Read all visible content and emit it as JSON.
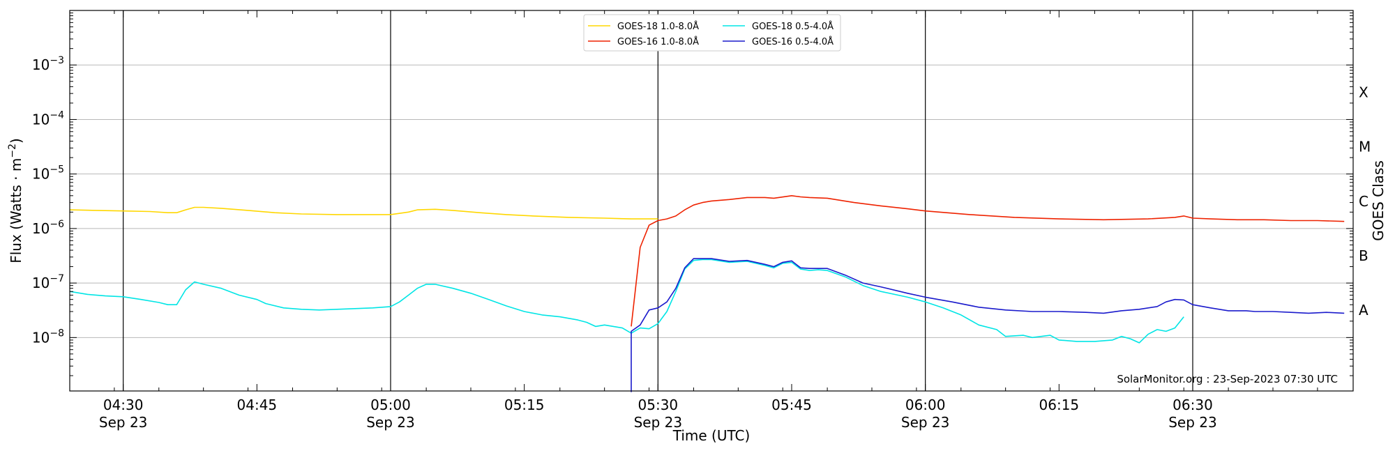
{
  "chart_data": {
    "type": "line",
    "xlabel": "Time (UTC)",
    "ylabel": "Flux (Watts · m",
    "ylabel_sup": "−2",
    "ylabel_close": ")",
    "right_label": "GOES Class",
    "credit": "SolarMonitor.org : 23-Sep-2023 07:30 UTC",
    "xlim": [
      "04:24",
      "06:48"
    ],
    "ylim_log10": [
      -8.98,
      -2.0
    ],
    "y_scale": "log",
    "grid": "horizontal at each decade",
    "legend_position": "top-center",
    "x_ticks": [
      {
        "time": "04:30",
        "label": "04:30",
        "date": "Sep 23",
        "vline": true
      },
      {
        "time": "04:45",
        "label": "04:45",
        "date": "",
        "vline": false
      },
      {
        "time": "05:00",
        "label": "05:00",
        "date": "Sep 23",
        "vline": true
      },
      {
        "time": "05:15",
        "label": "05:15",
        "date": "",
        "vline": false
      },
      {
        "time": "05:30",
        "label": "05:30",
        "date": "Sep 23",
        "vline": true
      },
      {
        "time": "05:45",
        "label": "05:45",
        "date": "",
        "vline": false
      },
      {
        "time": "06:00",
        "label": "06:00",
        "date": "Sep 23",
        "vline": true
      },
      {
        "time": "06:15",
        "label": "06:15",
        "date": "",
        "vline": false
      },
      {
        "time": "06:30",
        "label": "06:30",
        "date": "Sep 23",
        "vline": true
      }
    ],
    "y_ticks": [
      {
        "exp": -8,
        "base": "10",
        "sup": "−8"
      },
      {
        "exp": -7,
        "base": "10",
        "sup": "−7"
      },
      {
        "exp": -6,
        "base": "10",
        "sup": "−6"
      },
      {
        "exp": -5,
        "base": "10",
        "sup": "−5"
      },
      {
        "exp": -4,
        "base": "10",
        "sup": "−4"
      },
      {
        "exp": -3,
        "base": "10",
        "sup": "−3"
      }
    ],
    "goes_classes": [
      {
        "label": "A",
        "exp": -7.5
      },
      {
        "label": "B",
        "exp": -6.5
      },
      {
        "label": "C",
        "exp": -5.5
      },
      {
        "label": "M",
        "exp": -4.5
      },
      {
        "label": "X",
        "exp": -3.5
      }
    ],
    "series": [
      {
        "name": "GOES-18 1.0-8.0Å",
        "color": "#ffd700",
        "points": [
          [
            "04:24",
            2.2e-06
          ],
          [
            "04:27",
            2.15e-06
          ],
          [
            "04:30",
            2.1e-06
          ],
          [
            "04:33",
            2.05e-06
          ],
          [
            "04:35",
            1.95e-06
          ],
          [
            "04:36",
            1.95e-06
          ],
          [
            "04:37",
            2.2e-06
          ],
          [
            "04:38",
            2.45e-06
          ],
          [
            "04:39",
            2.45e-06
          ],
          [
            "04:41",
            2.35e-06
          ],
          [
            "04:44",
            2.15e-06
          ],
          [
            "04:47",
            1.95e-06
          ],
          [
            "04:50",
            1.85e-06
          ],
          [
            "04:54",
            1.8e-06
          ],
          [
            "04:58",
            1.8e-06
          ],
          [
            "05:00",
            1.8e-06
          ],
          [
            "05:02",
            2e-06
          ],
          [
            "05:03",
            2.2e-06
          ],
          [
            "05:05",
            2.25e-06
          ],
          [
            "05:07",
            2.15e-06
          ],
          [
            "05:10",
            1.95e-06
          ],
          [
            "05:13",
            1.8e-06
          ],
          [
            "05:16",
            1.7e-06
          ],
          [
            "05:20",
            1.6e-06
          ],
          [
            "05:24",
            1.55e-06
          ],
          [
            "05:27",
            1.5e-06
          ],
          [
            "05:29",
            1.5e-06
          ],
          [
            "05:30",
            1.5e-06
          ]
        ]
      },
      {
        "name": "GOES-16 1.0-8.0Å",
        "color": "#ee2200",
        "points": [
          [
            "05:27",
            1.6e-08
          ],
          [
            "05:28",
            4.5e-07
          ],
          [
            "05:29",
            1.15e-06
          ],
          [
            "05:30",
            1.4e-06
          ],
          [
            "05:31",
            1.5e-06
          ],
          [
            "05:32",
            1.7e-06
          ],
          [
            "05:33",
            2.2e-06
          ],
          [
            "05:34",
            2.7e-06
          ],
          [
            "05:35",
            3e-06
          ],
          [
            "05:36",
            3.2e-06
          ],
          [
            "05:38",
            3.4e-06
          ],
          [
            "05:40",
            3.7e-06
          ],
          [
            "05:42",
            3.7e-06
          ],
          [
            "05:43",
            3.6e-06
          ],
          [
            "05:45",
            4e-06
          ],
          [
            "05:46",
            3.8e-06
          ],
          [
            "05:47",
            3.7e-06
          ],
          [
            "05:49",
            3.6e-06
          ],
          [
            "05:52",
            3e-06
          ],
          [
            "05:55",
            2.6e-06
          ],
          [
            "05:58",
            2.3e-06
          ],
          [
            "06:00",
            2.1e-06
          ],
          [
            "06:05",
            1.8e-06
          ],
          [
            "06:10",
            1.6e-06
          ],
          [
            "06:15",
            1.5e-06
          ],
          [
            "06:20",
            1.45e-06
          ],
          [
            "06:25",
            1.5e-06
          ],
          [
            "06:28",
            1.6e-06
          ],
          [
            "06:29",
            1.7e-06
          ],
          [
            "06:30",
            1.55e-06
          ],
          [
            "06:32",
            1.5e-06
          ],
          [
            "06:35",
            1.45e-06
          ],
          [
            "06:38",
            1.45e-06
          ],
          [
            "06:41",
            1.4e-06
          ],
          [
            "06:44",
            1.4e-06
          ],
          [
            "06:47",
            1.35e-06
          ]
        ]
      },
      {
        "name": "GOES-18 0.5-4.0Å",
        "color": "#00e5e5",
        "points": [
          [
            "04:24",
            7e-08
          ],
          [
            "04:26",
            6.2e-08
          ],
          [
            "04:28",
            5.8e-08
          ],
          [
            "04:30",
            5.6e-08
          ],
          [
            "04:32",
            5e-08
          ],
          [
            "04:34",
            4.4e-08
          ],
          [
            "04:35",
            4e-08
          ],
          [
            "04:36",
            4e-08
          ],
          [
            "04:37",
            7.5e-08
          ],
          [
            "04:38",
            1.05e-07
          ],
          [
            "04:39",
            9.5e-08
          ],
          [
            "04:41",
            8e-08
          ],
          [
            "04:43",
            6e-08
          ],
          [
            "04:45",
            5e-08
          ],
          [
            "04:46",
            4.2e-08
          ],
          [
            "04:48",
            3.5e-08
          ],
          [
            "04:50",
            3.3e-08
          ],
          [
            "04:52",
            3.2e-08
          ],
          [
            "04:54",
            3.3e-08
          ],
          [
            "04:56",
            3.4e-08
          ],
          [
            "04:58",
            3.5e-08
          ],
          [
            "05:00",
            3.7e-08
          ],
          [
            "05:01",
            4.5e-08
          ],
          [
            "05:02",
            6e-08
          ],
          [
            "05:03",
            8e-08
          ],
          [
            "05:04",
            9.5e-08
          ],
          [
            "05:05",
            9.5e-08
          ],
          [
            "05:07",
            8e-08
          ],
          [
            "05:09",
            6.5e-08
          ],
          [
            "05:11",
            5e-08
          ],
          [
            "05:13",
            3.8e-08
          ],
          [
            "05:15",
            3e-08
          ],
          [
            "05:17",
            2.6e-08
          ],
          [
            "05:19",
            2.4e-08
          ],
          [
            "05:21",
            2.1e-08
          ],
          [
            "05:22",
            1.9e-08
          ],
          [
            "05:23",
            1.6e-08
          ],
          [
            "05:24",
            1.7e-08
          ],
          [
            "05:25",
            1.6e-08
          ],
          [
            "05:26",
            1.5e-08
          ],
          [
            "05:27",
            1.2e-08
          ],
          [
            "05:28",
            1.5e-08
          ],
          [
            "05:29",
            1.45e-08
          ],
          [
            "05:30",
            1.8e-08
          ],
          [
            "05:31",
            3e-08
          ],
          [
            "05:32",
            7e-08
          ],
          [
            "05:33",
            1.8e-07
          ],
          [
            "05:34",
            2.6e-07
          ],
          [
            "05:35",
            2.7e-07
          ],
          [
            "05:36",
            2.7e-07
          ],
          [
            "05:38",
            2.4e-07
          ],
          [
            "05:40",
            2.5e-07
          ],
          [
            "05:42",
            2.1e-07
          ],
          [
            "05:43",
            1.9e-07
          ],
          [
            "05:44",
            2.3e-07
          ],
          [
            "05:45",
            2.4e-07
          ],
          [
            "05:46",
            1.8e-07
          ],
          [
            "05:47",
            1.7e-07
          ],
          [
            "05:48",
            1.75e-07
          ],
          [
            "05:49",
            1.7e-07
          ],
          [
            "05:51",
            1.3e-07
          ],
          [
            "05:53",
            9e-08
          ],
          [
            "05:55",
            7e-08
          ],
          [
            "05:58",
            5.5e-08
          ],
          [
            "06:00",
            4.5e-08
          ],
          [
            "06:02",
            3.5e-08
          ],
          [
            "06:04",
            2.6e-08
          ],
          [
            "06:06",
            1.7e-08
          ],
          [
            "06:08",
            1.4e-08
          ],
          [
            "06:09",
            1.05e-08
          ],
          [
            "06:11",
            1.1e-08
          ],
          [
            "06:12",
            1e-08
          ],
          [
            "06:14",
            1.1e-08
          ],
          [
            "06:15",
            9e-09
          ],
          [
            "06:17",
            8.5e-09
          ],
          [
            "06:19",
            8.5e-09
          ],
          [
            "06:21",
            9e-09
          ],
          [
            "06:22",
            1.05e-08
          ],
          [
            "06:23",
            9.5e-09
          ],
          [
            "06:24",
            8e-09
          ],
          [
            "06:25",
            1.15e-08
          ],
          [
            "06:26",
            1.4e-08
          ],
          [
            "06:27",
            1.3e-08
          ],
          [
            "06:28",
            1.5e-08
          ],
          [
            "06:29",
            2.4e-08
          ]
        ]
      },
      {
        "name": "GOES-16 0.5-4.0Å",
        "color": "#1a1acc",
        "points": [
          [
            "05:27",
            1e-09
          ],
          [
            "05:27",
            1.3e-08
          ],
          [
            "05:28",
            1.7e-08
          ],
          [
            "05:29",
            3.2e-08
          ],
          [
            "05:30",
            3.5e-08
          ],
          [
            "05:31",
            4.5e-08
          ],
          [
            "05:32",
            8e-08
          ],
          [
            "05:33",
            1.9e-07
          ],
          [
            "05:34",
            2.8e-07
          ],
          [
            "05:35",
            2.8e-07
          ],
          [
            "05:36",
            2.8e-07
          ],
          [
            "05:38",
            2.5e-07
          ],
          [
            "05:40",
            2.6e-07
          ],
          [
            "05:42",
            2.2e-07
          ],
          [
            "05:43",
            2e-07
          ],
          [
            "05:44",
            2.4e-07
          ],
          [
            "05:45",
            2.55e-07
          ],
          [
            "05:46",
            1.9e-07
          ],
          [
            "05:47",
            1.85e-07
          ],
          [
            "05:49",
            1.85e-07
          ],
          [
            "05:51",
            1.4e-07
          ],
          [
            "05:53",
            1e-07
          ],
          [
            "05:55",
            8.5e-08
          ],
          [
            "05:58",
            6.5e-08
          ],
          [
            "06:00",
            5.5e-08
          ],
          [
            "06:03",
            4.5e-08
          ],
          [
            "06:06",
            3.6e-08
          ],
          [
            "06:09",
            3.2e-08
          ],
          [
            "06:12",
            3e-08
          ],
          [
            "06:15",
            3e-08
          ],
          [
            "06:18",
            2.9e-08
          ],
          [
            "06:20",
            2.8e-08
          ],
          [
            "06:22",
            3.1e-08
          ],
          [
            "06:24",
            3.3e-08
          ],
          [
            "06:26",
            3.7e-08
          ],
          [
            "06:27",
            4.5e-08
          ],
          [
            "06:28",
            5e-08
          ],
          [
            "06:29",
            4.9e-08
          ],
          [
            "06:30",
            4e-08
          ],
          [
            "06:32",
            3.5e-08
          ],
          [
            "06:34",
            3.1e-08
          ],
          [
            "06:36",
            3.1e-08
          ],
          [
            "06:37",
            3e-08
          ],
          [
            "06:39",
            3e-08
          ],
          [
            "06:41",
            2.9e-08
          ],
          [
            "06:43",
            2.8e-08
          ],
          [
            "06:45",
            2.9e-08
          ],
          [
            "06:47",
            2.8e-08
          ]
        ]
      }
    ]
  }
}
